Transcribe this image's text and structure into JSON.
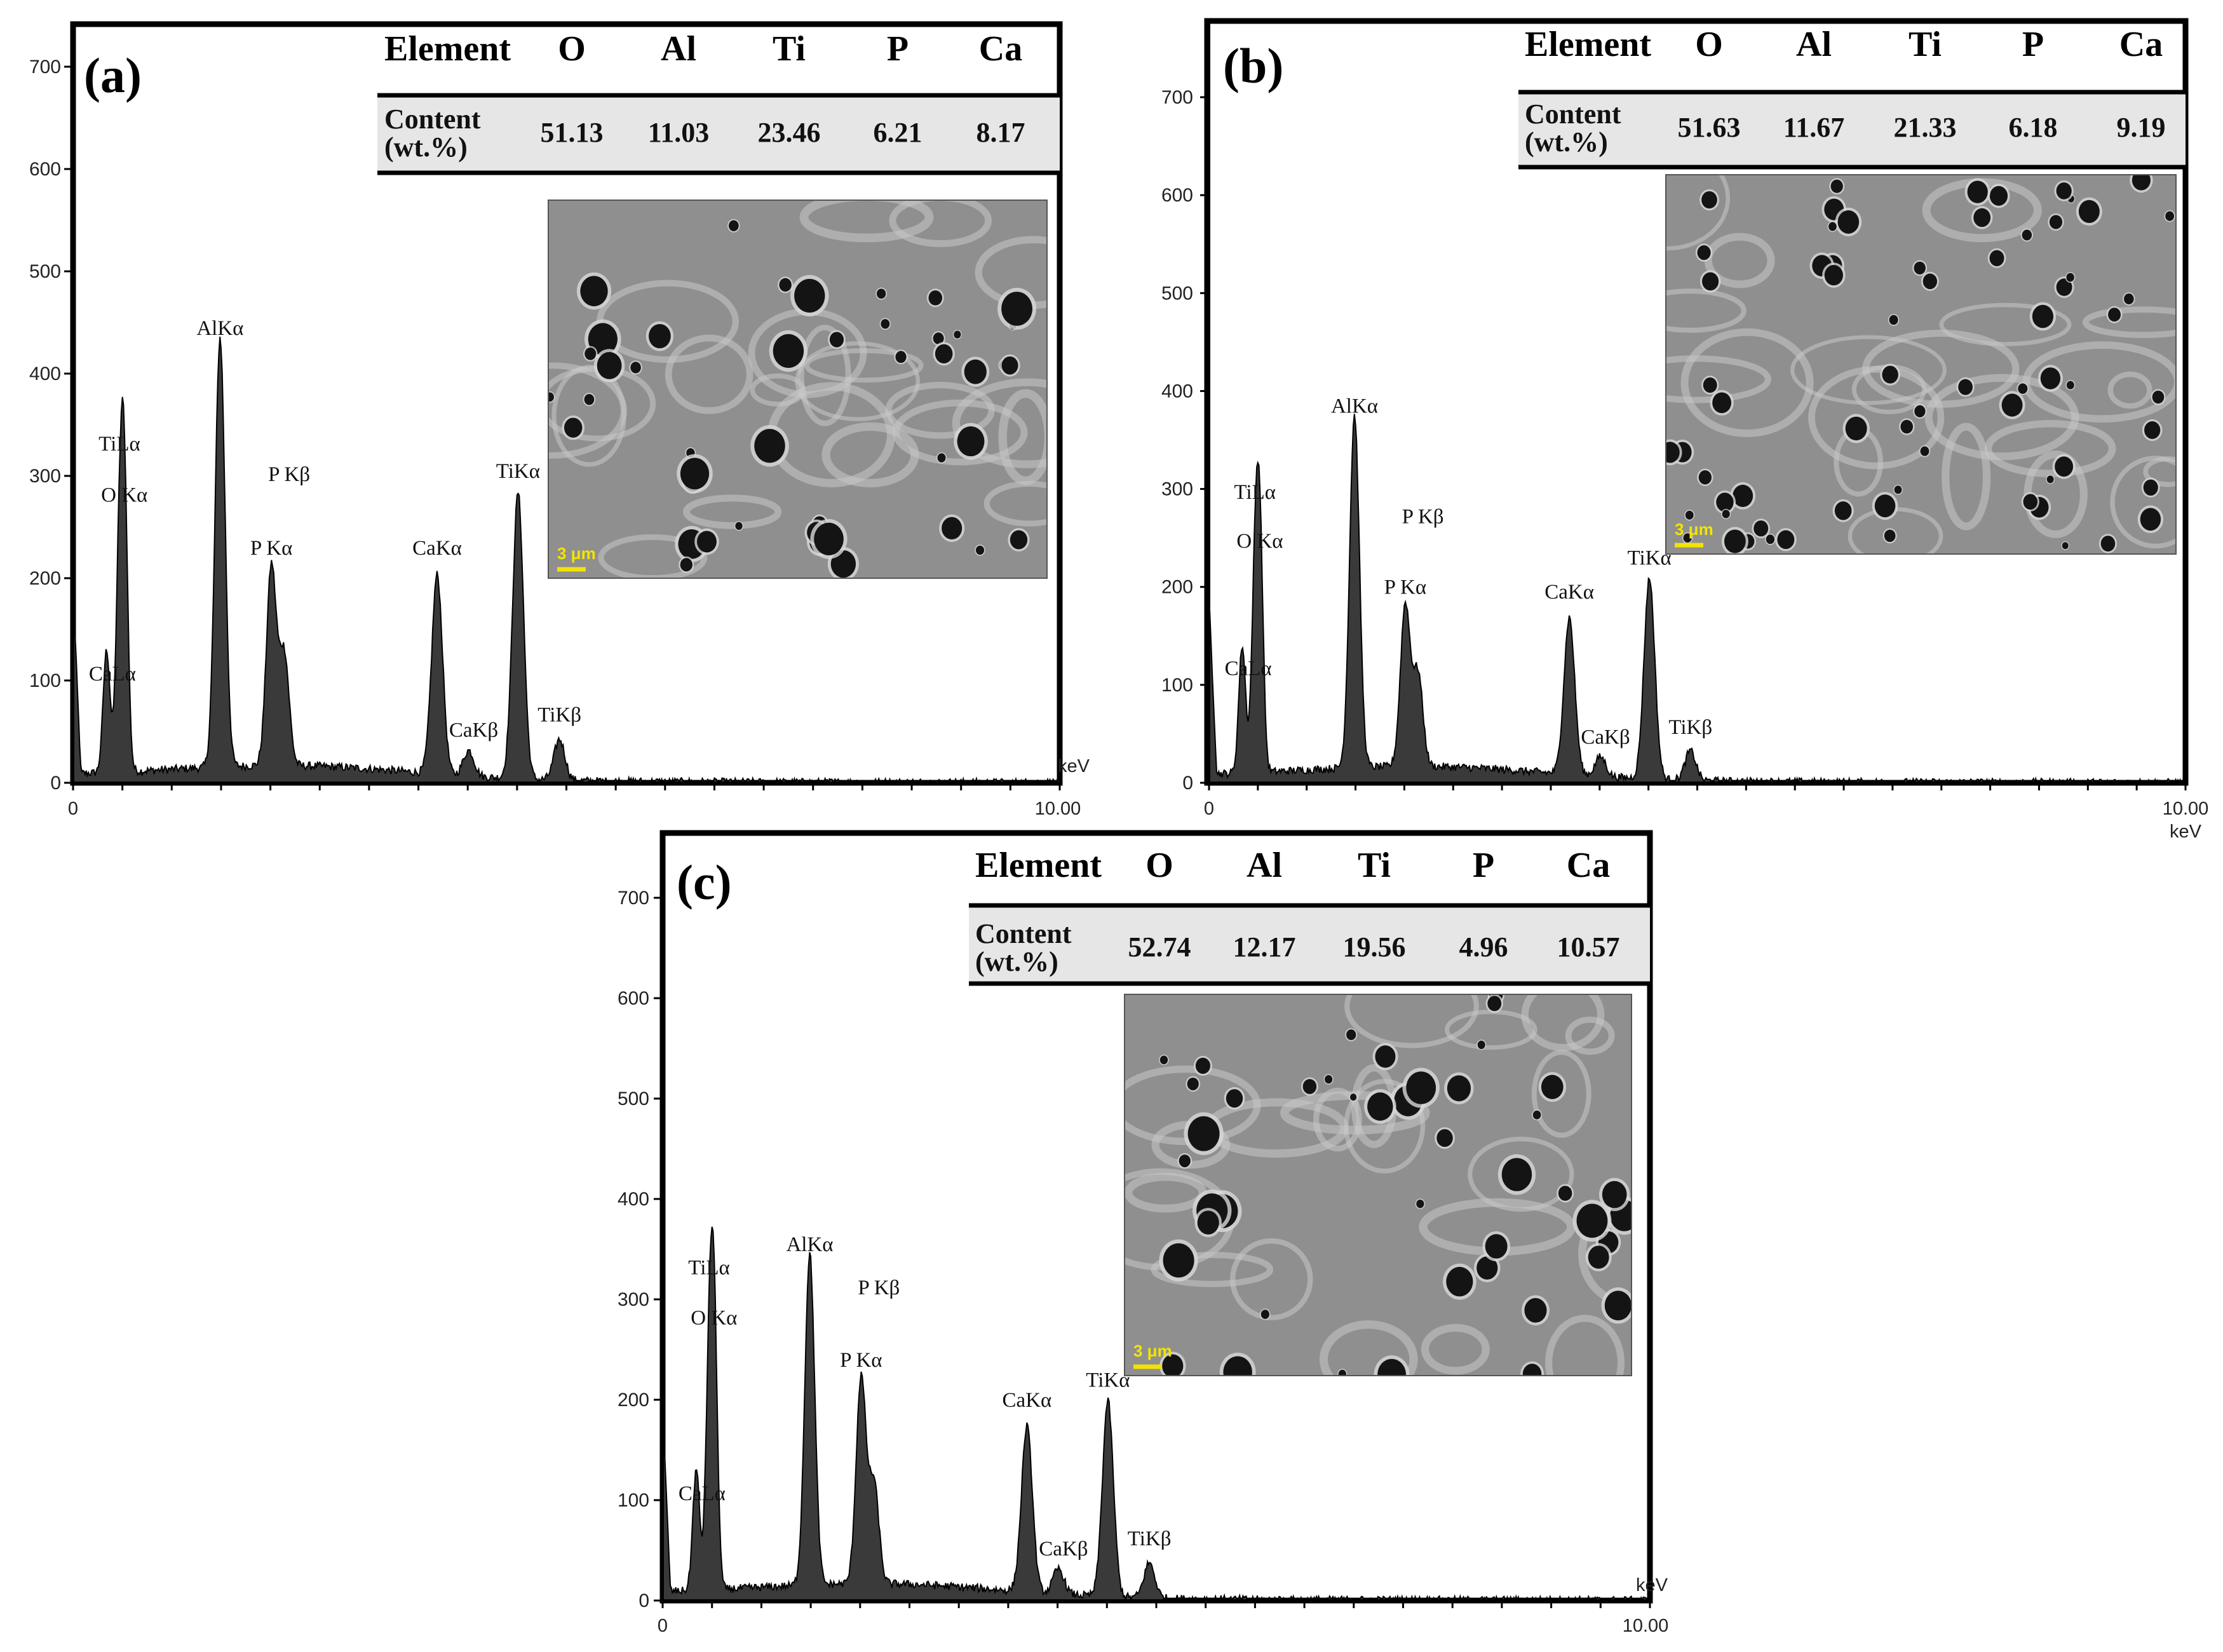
{
  "colors": {
    "spectrum_fill": "#3a3a3a",
    "spectrum_stroke": "#000000",
    "micrograph_background": "#8f8f8f",
    "scale_bar": "#f2e400",
    "table_row_fill": "#e6e6e6"
  },
  "chart_data": [
    {
      "type": "area",
      "panel_label": "(a)",
      "x_unit": "keV",
      "xlim": [
        0,
        10.0
      ],
      "ylim": [
        0,
        760
      ],
      "x_ticks": [
        "0",
        "10.00"
      ],
      "y_ticks": [
        "0",
        "100",
        "200",
        "300",
        "400",
        "500",
        "600",
        "700"
      ],
      "peaks": [
        {
          "label": "CaLα",
          "x": 0.34,
          "y": 120
        },
        {
          "label": "TiLα",
          "x": 0.47,
          "y": 200
        },
        {
          "label": "O Kα",
          "x": 0.52,
          "y": 265
        },
        {
          "label": "AlKα",
          "x": 1.49,
          "y": 420
        },
        {
          "label": "P Kα",
          "x": 2.01,
          "y": 195
        },
        {
          "label": "P Kβ",
          "x": 2.14,
          "y": 110
        },
        {
          "label": "CaKα",
          "x": 3.69,
          "y": 195
        },
        {
          "label": "CaKβ",
          "x": 4.01,
          "y": 25
        },
        {
          "label": "TiKα",
          "x": 4.51,
          "y": 280
        },
        {
          "label": "TiKβ",
          "x": 4.93,
          "y": 40
        }
      ],
      "peak_annotations": [
        "TiLα",
        "O Kα",
        "AlKα",
        "P Kβ",
        "P Kα",
        "CaKα",
        "CaLα",
        "CaKβ",
        "TiKα",
        "TiKβ"
      ],
      "composition_table": {
        "header_label": "Element",
        "row_label_line1": "Content",
        "row_label_line2": "(wt.%)",
        "elements": [
          "O",
          "Al",
          "Ti",
          "P",
          "Ca"
        ],
        "values": [
          "51.13",
          "11.03",
          "23.46",
          "6.21",
          "8.17"
        ]
      },
      "scale_bar_text": "3 μm"
    },
    {
      "type": "area",
      "panel_label": "(b)",
      "x_unit": "keV",
      "xlim": [
        0,
        10.0
      ],
      "ylim": [
        0,
        760
      ],
      "x_ticks": [
        "0",
        "10.00"
      ],
      "y_ticks": [
        "0",
        "100",
        "200",
        "300",
        "400",
        "500",
        "600",
        "700"
      ],
      "peaks": [
        {
          "label": "CaLα",
          "x": 0.34,
          "y": 130
        },
        {
          "label": "TiLα",
          "x": 0.47,
          "y": 180
        },
        {
          "label": "O Kα",
          "x": 0.52,
          "y": 230
        },
        {
          "label": "AlKα",
          "x": 1.49,
          "y": 360
        },
        {
          "label": "P Kα",
          "x": 2.01,
          "y": 165
        },
        {
          "label": "P Kβ",
          "x": 2.14,
          "y": 95
        },
        {
          "label": "CaKα",
          "x": 3.69,
          "y": 160
        },
        {
          "label": "CaKβ",
          "x": 4.01,
          "y": 20
        },
        {
          "label": "TiKα",
          "x": 4.51,
          "y": 205
        },
        {
          "label": "TiKβ",
          "x": 4.93,
          "y": 30
        }
      ],
      "peak_annotations": [
        "TiLα",
        "O Kα",
        "AlKα",
        "P Kβ",
        "P Kα",
        "CaKα",
        "CaLα",
        "CaKβ",
        "TiKα",
        "TiKβ"
      ],
      "composition_table": {
        "header_label": "Element",
        "row_label_line1": "Content",
        "row_label_line2": "(wt.%)",
        "elements": [
          "O",
          "Al",
          "Ti",
          "P",
          "Ca"
        ],
        "values": [
          "51.63",
          "11.67",
          "21.33",
          "6.18",
          "9.19"
        ]
      },
      "scale_bar_text": "3 μm"
    },
    {
      "type": "area",
      "panel_label": "(c)",
      "x_unit": "keV",
      "xlim": [
        0,
        10.0
      ],
      "ylim": [
        0,
        760
      ],
      "x_ticks": [
        "0",
        "10.00"
      ],
      "y_ticks": [
        "0",
        "100",
        "200",
        "300",
        "400",
        "500",
        "600",
        "700"
      ],
      "peaks": [
        {
          "label": "CaLα",
          "x": 0.34,
          "y": 120
        },
        {
          "label": "TiLα",
          "x": 0.47,
          "y": 200
        },
        {
          "label": "O Kα",
          "x": 0.52,
          "y": 265
        },
        {
          "label": "AlKα",
          "x": 1.49,
          "y": 330
        },
        {
          "label": "P Kα",
          "x": 2.01,
          "y": 205
        },
        {
          "label": "P Kβ",
          "x": 2.14,
          "y": 100
        },
        {
          "label": "CaKα",
          "x": 3.69,
          "y": 165
        },
        {
          "label": "CaKβ",
          "x": 4.01,
          "y": 25
        },
        {
          "label": "TiKα",
          "x": 4.51,
          "y": 195
        },
        {
          "label": "TiKβ",
          "x": 4.93,
          "y": 35
        }
      ],
      "peak_annotations": [
        "TiLα",
        "O Kα",
        "AlKα",
        "P Kβ",
        "P Kα",
        "CaKα",
        "CaLα",
        "CaKβ",
        "TiKα",
        "TiKβ"
      ],
      "composition_table": {
        "header_label": "Element",
        "row_label_line1": "Content",
        "row_label_line2": "(wt.%)",
        "elements": [
          "O",
          "Al",
          "Ti",
          "P",
          "Ca"
        ],
        "values": [
          "52.74",
          "12.17",
          "19.56",
          "4.96",
          "10.57"
        ]
      },
      "scale_bar_text": "3 μm"
    }
  ]
}
